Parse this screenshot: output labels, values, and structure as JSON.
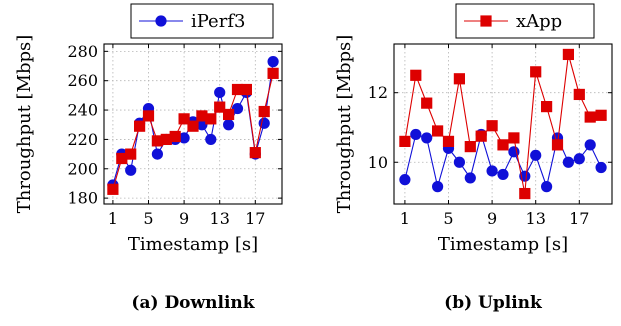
{
  "colors": {
    "iperf": "#1010d8",
    "xapp": "#dd0000",
    "grid": "#b5b5b5",
    "axis": "#000000"
  },
  "chart_data": [
    {
      "type": "line",
      "caption": "(a) Downlink",
      "xlabel": "Timestamp [s]",
      "ylabel": "Throughput [Mbps]",
      "legend_position": "top",
      "grid": true,
      "xlim": [
        0,
        20
      ],
      "ylim": [
        176,
        285
      ],
      "xticks": [
        1,
        5,
        9,
        13,
        17
      ],
      "yticks": [
        180,
        200,
        220,
        240,
        260,
        280
      ],
      "x": [
        1,
        2,
        3,
        4,
        5,
        6,
        7,
        8,
        9,
        10,
        11,
        12,
        13,
        14,
        15,
        16,
        17,
        18,
        19
      ],
      "series": [
        {
          "name": "iPerf3",
          "marker": "circle",
          "color": "#1010d8",
          "values": [
            189,
            210,
            199,
            231,
            241,
            210,
            220,
            220,
            221,
            232,
            230,
            220,
            252,
            230,
            241,
            252,
            210,
            231,
            273
          ]
        },
        {
          "name": "",
          "marker": "square",
          "color": "#dd0000",
          "values": [
            186,
            207,
            210,
            229,
            236,
            219,
            220,
            222,
            234,
            229,
            236,
            234,
            242,
            237,
            254,
            254,
            211,
            239,
            265
          ]
        }
      ]
    },
    {
      "type": "line",
      "caption": "(b) Uplink",
      "xlabel": "Timestamp [s]",
      "ylabel": "Throughput [Mbps]",
      "legend_position": "top",
      "grid": true,
      "xlim": [
        0,
        20
      ],
      "ylim": [
        8.8,
        13.4
      ],
      "xticks": [
        1,
        5,
        9,
        13,
        17
      ],
      "yticks": [
        10,
        12
      ],
      "x": [
        1,
        2,
        3,
        4,
        5,
        6,
        7,
        8,
        9,
        10,
        11,
        12,
        13,
        14,
        15,
        16,
        17,
        18,
        19
      ],
      "series": [
        {
          "name": "",
          "marker": "circle",
          "color": "#1010d8",
          "values": [
            9.5,
            10.8,
            10.7,
            9.3,
            10.4,
            10.0,
            9.55,
            10.8,
            9.75,
            9.65,
            10.3,
            9.6,
            10.2,
            9.3,
            10.7,
            10.0,
            10.1,
            10.5,
            9.85
          ]
        },
        {
          "name": "xApp",
          "marker": "square",
          "color": "#dd0000",
          "values": [
            10.6,
            12.5,
            11.7,
            10.9,
            10.6,
            12.4,
            10.45,
            10.75,
            11.05,
            10.5,
            10.7,
            9.1,
            12.6,
            11.6,
            10.5,
            13.1,
            11.95,
            11.3,
            11.35
          ]
        }
      ]
    }
  ]
}
